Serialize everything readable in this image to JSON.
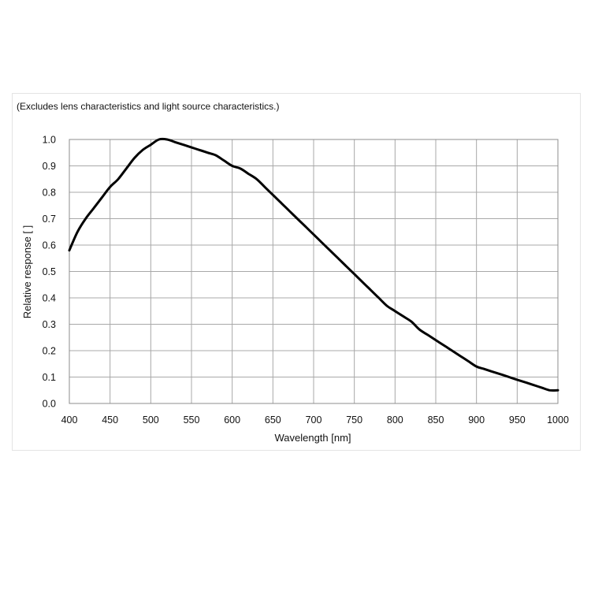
{
  "chart_data": {
    "type": "line",
    "annotation": "(Excludes lens characteristics and light source characteristics.)",
    "xlabel": "Wavelength [nm]",
    "ylabel": "Relative response [ ]",
    "xlim": [
      400,
      1000
    ],
    "ylim": [
      0,
      1.0
    ],
    "xticks": [
      "400",
      "450",
      "500",
      "550",
      "600",
      "650",
      "700",
      "750",
      "800",
      "850",
      "900",
      "950",
      "1000"
    ],
    "yticks": [
      "0.0",
      "0.1",
      "0.2",
      "0.3",
      "0.4",
      "0.5",
      "0.6",
      "0.7",
      "0.8",
      "0.9",
      "1.0"
    ],
    "grid": true,
    "series": [
      {
        "color": "#000000",
        "x": [
          400,
          410,
          420,
          430,
          440,
          450,
          460,
          470,
          480,
          490,
          500,
          510,
          520,
          530,
          540,
          550,
          560,
          570,
          580,
          590,
          600,
          610,
          620,
          630,
          640,
          650,
          660,
          670,
          680,
          690,
          700,
          710,
          720,
          730,
          740,
          750,
          760,
          770,
          780,
          790,
          800,
          810,
          820,
          830,
          840,
          850,
          860,
          870,
          880,
          890,
          900,
          910,
          920,
          930,
          940,
          950,
          960,
          970,
          980,
          990,
          1000
        ],
        "y": [
          0.58,
          0.65,
          0.7,
          0.74,
          0.78,
          0.82,
          0.85,
          0.89,
          0.93,
          0.96,
          0.98,
          1.0,
          1.0,
          0.99,
          0.98,
          0.97,
          0.96,
          0.95,
          0.94,
          0.92,
          0.9,
          0.89,
          0.87,
          0.85,
          0.82,
          0.79,
          0.76,
          0.73,
          0.7,
          0.67,
          0.64,
          0.61,
          0.58,
          0.55,
          0.52,
          0.49,
          0.46,
          0.43,
          0.4,
          0.37,
          0.35,
          0.33,
          0.31,
          0.28,
          0.26,
          0.24,
          0.22,
          0.2,
          0.18,
          0.16,
          0.14,
          0.13,
          0.12,
          0.11,
          0.1,
          0.09,
          0.08,
          0.07,
          0.06,
          0.05,
          0.05
        ]
      }
    ]
  }
}
